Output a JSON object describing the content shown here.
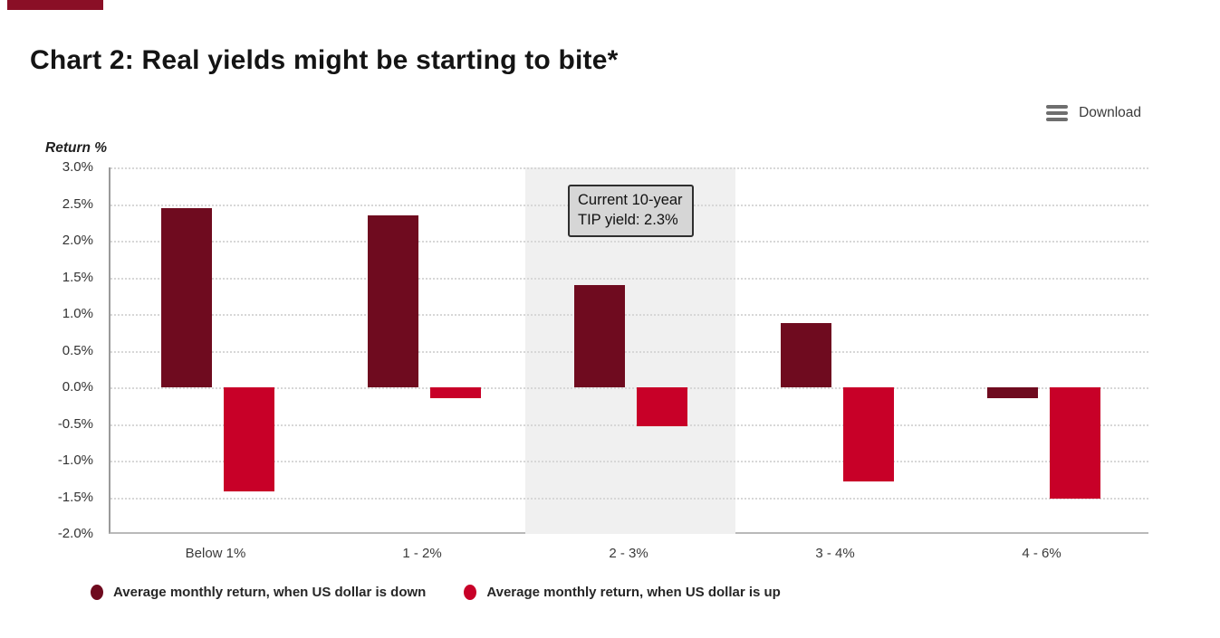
{
  "accent_bar_color": "#8a0f26",
  "header": {
    "title": "Chart 2: Real yields might be starting to bite*"
  },
  "toolbar": {
    "download_label": "Download",
    "download_icon": "hamburger-lines"
  },
  "chart_data": {
    "type": "bar",
    "title": "Chart 2: Real yields might be starting to bite*",
    "xlabel": "",
    "ylabel": "Return %",
    "categories": [
      "Below 1%",
      "1 - 2%",
      "2 - 3%",
      "3 - 4%",
      "4 - 6%"
    ],
    "series": [
      {
        "name": "Average monthly return, when US dollar is down",
        "color": "#6f0b1f",
        "values": [
          2.45,
          2.35,
          1.4,
          0.88,
          -0.15
        ]
      },
      {
        "name": "Average monthly return, when US dollar is up",
        "color": "#c80028",
        "values": [
          -1.42,
          -0.15,
          -0.53,
          -1.28,
          -1.52
        ]
      }
    ],
    "ylim": [
      -2.0,
      3.0
    ],
    "ytick_step": 0.5,
    "ytick_labels": [
      "3.0%",
      "2.5%",
      "2.0%",
      "1.5%",
      "1.0%",
      "0.5%",
      "0.0%",
      "-0.5%",
      "-1.0%",
      "-1.5%",
      "-2.0%"
    ],
    "grid": "horizontal-dotted",
    "highlight_band": {
      "category": "2 - 3%",
      "category_index": 2,
      "color": "#f0f0f0"
    },
    "annotation": {
      "lines": [
        "Current 10-year",
        "TIP yield: 2.3%"
      ]
    },
    "legend_position": "bottom-left"
  }
}
